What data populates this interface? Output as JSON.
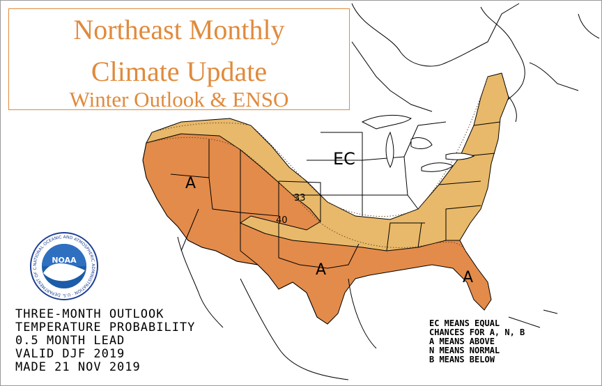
{
  "title": {
    "line1": "Northeast Monthly",
    "line2": "Climate Update",
    "line3": "Winter Outlook & ENSO"
  },
  "map": {
    "labels": {
      "ec_center": "EC",
      "above_west": "A",
      "above_texas": "A",
      "above_florida": "A",
      "contour_33": "33",
      "contour_40": "40"
    },
    "colors": {
      "above_33": "#e8b96a",
      "above_40": "#e38b4a",
      "outline": "#000000"
    }
  },
  "logo": {
    "center_text": "NOAA",
    "ring_text": "NATIONAL OCEANIC AND ATMOSPHERIC ADMINISTRATION · U.S. DEPARTMENT OF COMMERCE"
  },
  "caption": {
    "line1": "THREE-MONTH OUTLOOK",
    "line2": "TEMPERATURE PROBABILITY",
    "line3": "0.5 MONTH LEAD",
    "line4": "VALID DJF 2019",
    "line5": "MADE 21 NOV 2019"
  },
  "legend": {
    "line1": "EC MEANS EQUAL",
    "line2": "CHANCES FOR A, N, B",
    "line3": "A MEANS ABOVE",
    "line4": "N MEANS NORMAL",
    "line5": "B MEANS BELOW"
  }
}
